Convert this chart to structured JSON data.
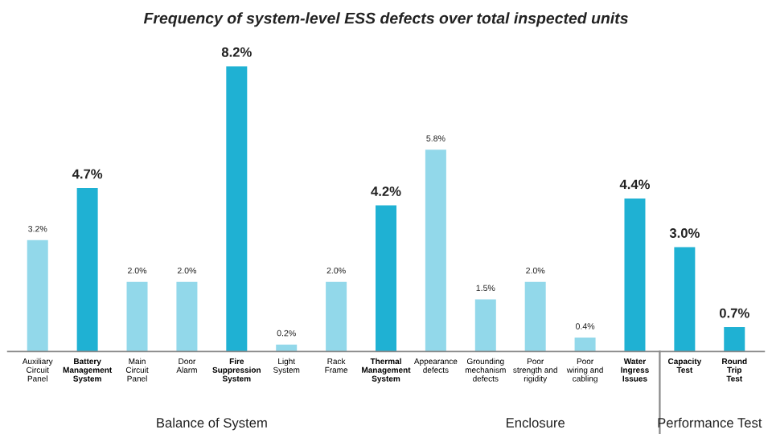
{
  "chart_data": {
    "type": "bar",
    "title": "Frequency of system-level ESS defects over total inspected units",
    "categories": [
      "Auxiliary\nCircuit\nPanel",
      "Battery\nManagement\nSystem",
      "Main\nCircuit\nPanel",
      "Door\nAlarm",
      "Fire\nSuppression\nSystem",
      "Light\nSystem",
      "Rack\nFrame",
      "Thermal\nManagement\nSystem",
      "Appearance\ndefects",
      "Grounding\nmechanism\ndefects",
      "Poor\nstrength and\nrigidity",
      "Poor\nwiring and\ncabling",
      "Water\nIngress\nIssues",
      "Capacity\nTest",
      "Round\nTrip\nTest"
    ],
    "values": [
      3.2,
      4.7,
      2.0,
      2.0,
      8.2,
      0.2,
      2.0,
      4.2,
      5.8,
      1.5,
      2.0,
      0.4,
      4.4,
      3.0,
      0.7
    ],
    "colors": [
      "#92d8ea",
      "#1fb1d3",
      "#92d8ea",
      "#92d8ea",
      "#1fb1d3",
      "#92d8ea",
      "#92d8ea",
      "#1fb1d3",
      "#92d8ea",
      "#92d8ea",
      "#92d8ea",
      "#92d8ea",
      "#1fb1d3",
      "#1fb1d3",
      "#1fb1d3"
    ],
    "value_labels": [
      "3.2%",
      "4.7%",
      "2.0%",
      "2.0%",
      "8.2%",
      "0.2%",
      "2.0%",
      "4.2%",
      "5.8%",
      "1.5%",
      "2.0%",
      "0.4%",
      "4.4%",
      "3.0%",
      "0.7%"
    ],
    "annotations": [
      "Balance of System",
      "Enclosure",
      "Performance Test"
    ],
    "tick_labels": "x",
    "grid": false,
    "legend": false
  }
}
